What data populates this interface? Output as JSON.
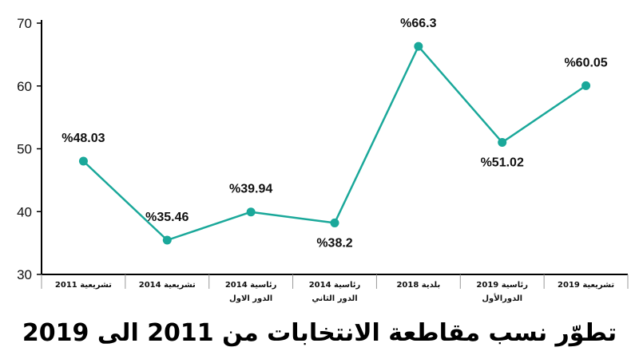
{
  "chart_data": {
    "type": "line",
    "title": "تطوّر نسب مقاطعة الانتخابات من 2011 الى 2019",
    "xlabel": "",
    "ylabel": "",
    "ylim": [
      30,
      70
    ],
    "yticks": [
      "30",
      "40",
      "50",
      "60",
      "70"
    ],
    "grid": false,
    "categories": [
      [
        "تشريعية 2011"
      ],
      [
        "تشريعية 2014"
      ],
      [
        "رئاسية 2014",
        "الدور الاول"
      ],
      [
        "رئاسية 2014",
        "الدور الثاني"
      ],
      [
        "بلدية 2018"
      ],
      [
        "رئاسية 2019",
        "الدورالأول"
      ],
      [
        "تشريعية 2019"
      ]
    ],
    "series": [
      {
        "values": [
          48.03,
          35.46,
          39.94,
          38.2,
          66.3,
          51.02,
          60.05
        ],
        "data_labels": [
          "%48.03",
          "%35.46",
          "%39.94",
          "%38.2",
          "%66.3",
          "%51.02",
          "%60.05"
        ],
        "label_positions": [
          "above",
          "above",
          "above",
          "below",
          "above",
          "below",
          "above"
        ]
      }
    ],
    "colors": {
      "line": "#1aa89a",
      "marker": "#1aa89a",
      "axis": "#000000"
    }
  }
}
